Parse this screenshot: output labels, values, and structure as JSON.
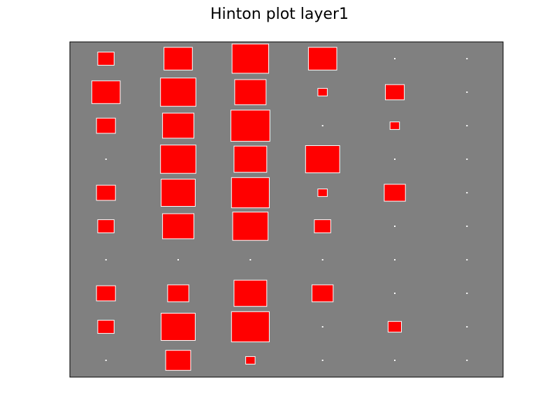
{
  "chart_data": {
    "type": "heatmap",
    "subtype": "hinton",
    "title": "Hinton plot layer1",
    "xlabel": "",
    "ylabel": "",
    "axes_ticks": false,
    "grid": false,
    "legend": "none",
    "colors": {
      "background": "#808080",
      "positive": "#ff0000",
      "negative": "#ffffff",
      "box_edge": "#ffffff",
      "axes_edge": "#000000"
    },
    "columns": 6,
    "rows": 10,
    "matrix": [
      [
        0.03,
        0.09,
        0.15,
        0.09,
        0.0,
        0.0
      ],
      [
        0.09,
        0.14,
        0.11,
        0.01,
        0.04,
        0.0
      ],
      [
        0.04,
        0.11,
        0.17,
        0.0,
        0.01,
        0.0
      ],
      [
        0.0,
        0.14,
        0.12,
        0.13,
        0.0,
        0.0
      ],
      [
        0.04,
        0.13,
        0.16,
        0.01,
        0.05,
        0.0
      ],
      [
        0.03,
        0.11,
        0.14,
        0.03,
        0.0,
        0.0
      ],
      [
        0.0,
        0.0,
        0.0,
        0.0,
        0.0,
        0.0
      ],
      [
        0.04,
        0.05,
        0.12,
        0.05,
        0.0,
        0.0
      ],
      [
        0.03,
        0.13,
        0.16,
        0.0,
        0.02,
        0.0
      ],
      [
        0.0,
        0.07,
        0.01,
        0.0,
        0.0,
        0.0
      ]
    ]
  }
}
